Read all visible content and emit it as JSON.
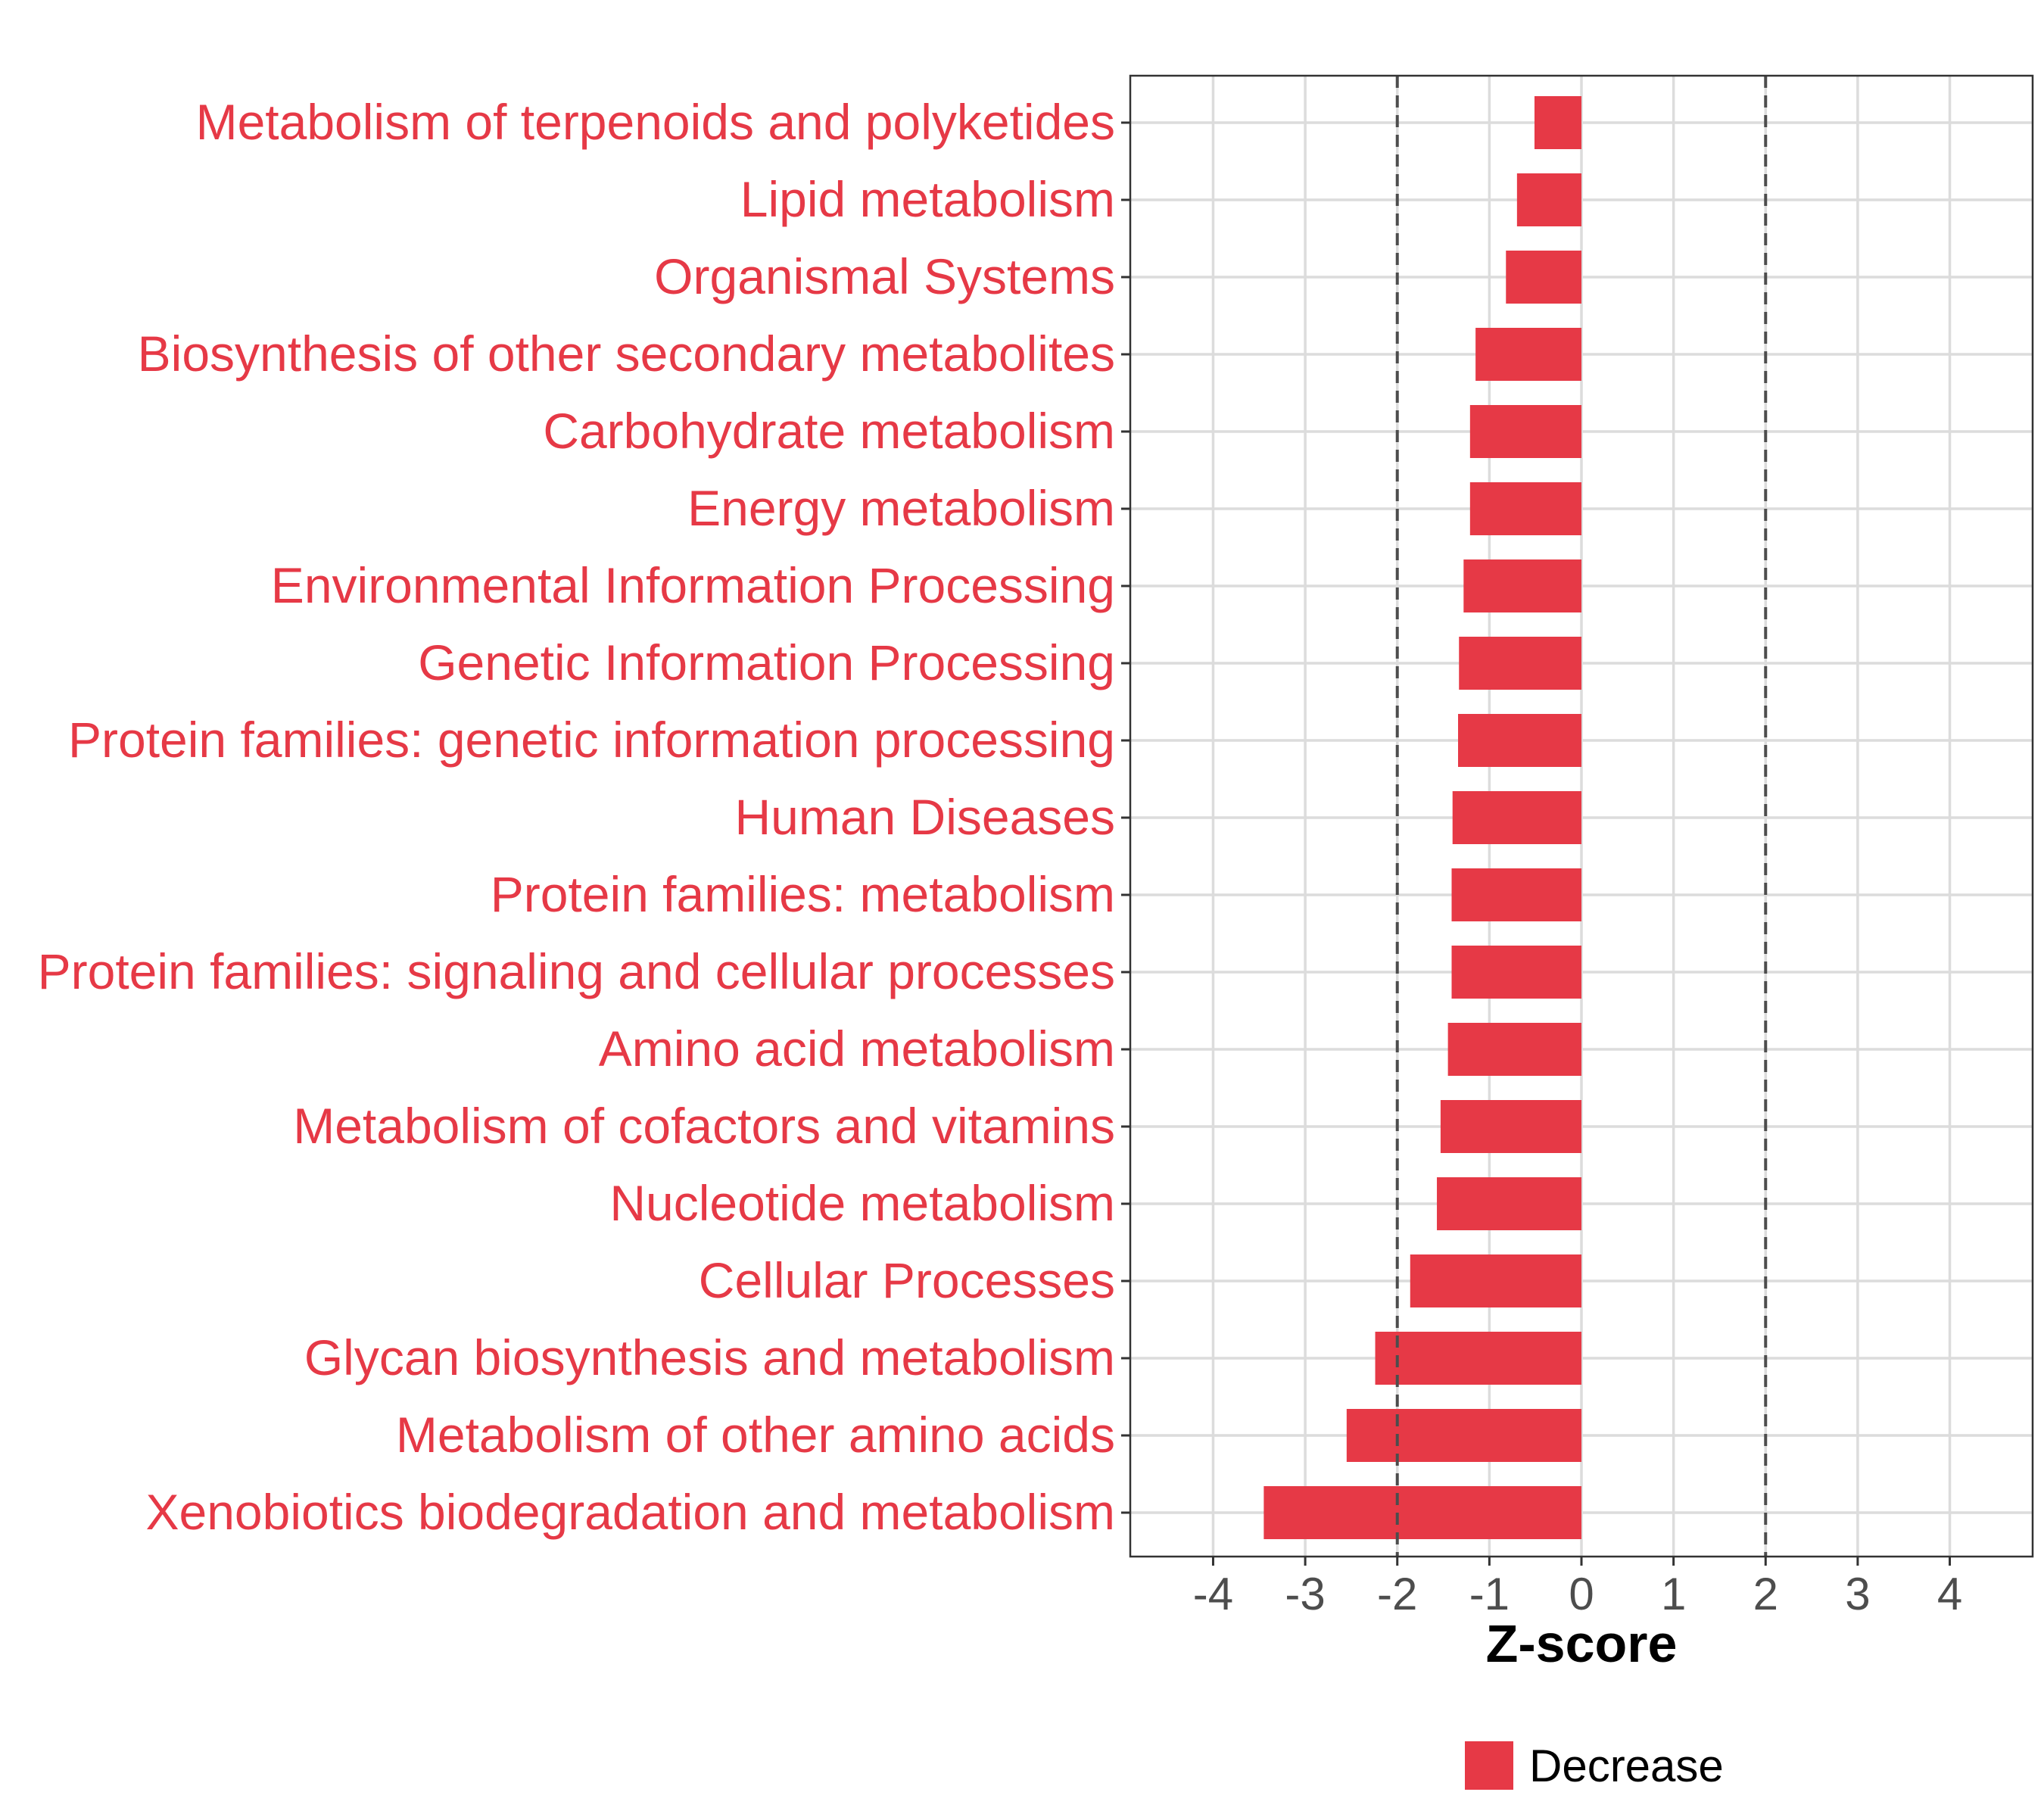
{
  "chart_data": {
    "type": "bar",
    "orientation": "horizontal",
    "categories": [
      "Metabolism of terpenoids and polyketides",
      "Lipid metabolism",
      "Organismal Systems",
      "Biosynthesis of other secondary metabolites",
      "Carbohydrate metabolism",
      "Energy metabolism",
      "Environmental Information Processing",
      "Genetic Information Processing",
      "Protein families: genetic information processing",
      "Human Diseases",
      "Protein families: metabolism",
      "Protein families: signaling and cellular processes",
      "Amino acid metabolism",
      "Metabolism of cofactors and vitamins",
      "Nucleotide metabolism",
      "Cellular Processes",
      "Glycan biosynthesis and metabolism",
      "Metabolism of other amino acids",
      "Xenobiotics biodegradation and metabolism"
    ],
    "series": [
      {
        "name": "Decrease",
        "color": "#E63946",
        "values": [
          -0.51,
          -0.7,
          -0.82,
          -1.15,
          -1.21,
          -1.21,
          -1.28,
          -1.33,
          -1.34,
          -1.4,
          -1.41,
          -1.41,
          -1.45,
          -1.53,
          -1.57,
          -1.86,
          -2.24,
          -2.55,
          -3.45
        ]
      }
    ],
    "xlabel": "Z-score",
    "ylabel": "",
    "xlim": [
      -4.9,
      4.9
    ],
    "xticks": [
      "-4",
      "-3",
      "-2",
      "-1",
      "0",
      "1",
      "2",
      "3",
      "4"
    ],
    "reference_lines": [
      -2,
      2
    ],
    "grid": true,
    "legend": {
      "position": "bottom",
      "entries": [
        "Decrease"
      ]
    },
    "label_color": "#E63946"
  }
}
